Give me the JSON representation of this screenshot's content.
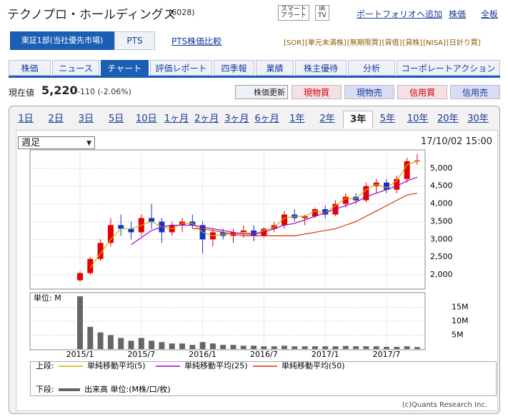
{
  "header": {
    "title": "テクノプロ・ホールディングス",
    "code": "(6028)",
    "alert": [
      "スマート",
      "アラート"
    ],
    "irtv": [
      "IR",
      "TV"
    ],
    "links": [
      "ポートフォリオへ追加",
      "株価",
      "全板"
    ]
  },
  "market": {
    "primary": "東証1部(当社優先市場)",
    "pts": "PTS",
    "compare": "PTS株価比較",
    "tags": [
      "[SOR]",
      "[単元未満株]",
      "[無期限買]",
      "[貸借]",
      "[貸株]",
      "[NISA]",
      "[日計り買]"
    ]
  },
  "nav": {
    "tabs": [
      "株価",
      "ニュース",
      "チャート",
      "評価レポート",
      "四季報",
      "業績",
      "株主優待",
      "分析",
      "コーポレートアクション"
    ]
  },
  "quote": {
    "label": "現在値",
    "price": "5,220",
    "change": "-110 (-2.06%)",
    "refresh": "株価更新",
    "buttons": [
      "現物買",
      "現物売",
      "信用買",
      "信用売"
    ]
  },
  "periods": [
    "1日",
    "2日",
    "3日",
    "5日",
    "10日",
    "1ヶ月",
    "2ヶ月",
    "3ヶ月",
    "6ヶ月",
    "1年",
    "2年",
    "3年",
    "5年",
    "10年",
    "20年",
    "30年"
  ],
  "chart_data": {
    "type": "candlestick",
    "interval": "週足",
    "timestamp": "17/10/02 15:00",
    "categories": [
      "2015/1",
      null,
      null,
      null,
      null,
      null,
      "2015/7",
      null,
      null,
      null,
      null,
      null,
      "2016/1",
      null,
      null,
      null,
      null,
      null,
      "2016/7",
      null,
      null,
      null,
      null,
      null,
      "2017/1",
      null,
      null,
      null,
      null,
      null,
      "2017/7",
      null,
      null,
      null
    ],
    "open": [
      1850,
      2050,
      2450,
      2900,
      3400,
      3300,
      3200,
      3600,
      3500,
      3200,
      3400,
      3500,
      3400,
      3000,
      3200,
      3100,
      3200,
      3250,
      3100,
      3300,
      3400,
      3700,
      3600,
      3650,
      3850,
      3700,
      4000,
      4200,
      4100,
      4500,
      4600,
      4400,
      4700,
      5200
    ],
    "high": [
      2100,
      2500,
      3000,
      3600,
      3700,
      3500,
      3700,
      4000,
      3600,
      3500,
      3600,
      3700,
      3500,
      3300,
      3300,
      3300,
      3400,
      3400,
      3350,
      3500,
      3800,
      3850,
      3700,
      3900,
      3950,
      4100,
      4300,
      4300,
      4600,
      4700,
      4700,
      4800,
      5300,
      5400
    ],
    "low": [
      1800,
      2000,
      2400,
      2800,
      3100,
      3000,
      3100,
      3300,
      2900,
      3100,
      3200,
      3300,
      2600,
      2800,
      3000,
      2900,
      3050,
      2950,
      3050,
      3200,
      3300,
      3500,
      3400,
      3600,
      3600,
      3650,
      3900,
      4000,
      4050,
      4300,
      4300,
      4300,
      4600,
      5100
    ],
    "close": [
      2050,
      2450,
      2900,
      3400,
      3300,
      3200,
      3600,
      3500,
      3200,
      3400,
      3500,
      3400,
      3000,
      3200,
      3100,
      3200,
      3250,
      3100,
      3300,
      3400,
      3700,
      3600,
      3650,
      3850,
      3700,
      4000,
      4200,
      4100,
      4500,
      4600,
      4400,
      4700,
      5200,
      5220
    ],
    "up_color": "#e60000",
    "down_color": "#1133cc",
    "ylim": [
      1600,
      5520
    ],
    "yticks": [
      {
        "value": 2000,
        "label": "2,000"
      },
      {
        "value": 2500,
        "label": "2,500"
      },
      {
        "value": 3000,
        "label": "3,000"
      },
      {
        "value": 3500,
        "label": "3,500"
      },
      {
        "value": 4000,
        "label": "4,000"
      },
      {
        "value": 4500,
        "label": "4,500"
      },
      {
        "value": 5000,
        "label": "5,000"
      }
    ],
    "upper_label": "上段:",
    "lower_label": "下段:",
    "series": [
      {
        "name": "単純移動平均(5)",
        "color": "#c8b400",
        "values": [
          null,
          2200,
          2600,
          3000,
          3300,
          3300,
          3400,
          3500,
          3350,
          3300,
          3450,
          3450,
          3200,
          3100,
          3150,
          3150,
          3200,
          3150,
          3250,
          3350,
          3600,
          3650,
          3650,
          3800,
          3750,
          3950,
          4150,
          4150,
          4400,
          4550,
          4450,
          4650,
          5100,
          5200
        ]
      },
      {
        "name": "単純移動平均(25)",
        "color": "#9900cc",
        "values": [
          null,
          null,
          null,
          null,
          null,
          2850,
          3050,
          3250,
          3350,
          3400,
          3400,
          3400,
          3350,
          3300,
          3250,
          3200,
          3150,
          3150,
          3200,
          3300,
          3400,
          3450,
          3550,
          3650,
          3750,
          3850,
          3950,
          4050,
          4200,
          4300,
          4400,
          4500,
          4650,
          4750
        ]
      },
      {
        "name": "単純移動平均(50)",
        "color": "#e03000",
        "values": [
          null,
          null,
          null,
          null,
          null,
          null,
          null,
          null,
          null,
          null,
          null,
          3300,
          3300,
          3250,
          3200,
          3150,
          3100,
          3100,
          3100,
          3100,
          3100,
          3100,
          3150,
          3200,
          3250,
          3300,
          3400,
          3500,
          3650,
          3800,
          3950,
          4100,
          4250,
          4300
        ]
      }
    ],
    "volume": {
      "unit": "単位: M",
      "name": "出来高 単位:(M株/口/枚)",
      "color": "#666666",
      "ylim": [
        0,
        20.3
      ],
      "yticks": [
        {
          "value": 5,
          "label": "5M"
        },
        {
          "value": 10,
          "label": "10M"
        },
        {
          "value": 15,
          "label": "15M"
        }
      ],
      "values": [
        19,
        8,
        6,
        5,
        4,
        3,
        4,
        3,
        2.5,
        2,
        2,
        1.5,
        2.5,
        2,
        1.5,
        1.5,
        1.2,
        1.2,
        1,
        1,
        1.2,
        1,
        1,
        1,
        1,
        1,
        1.1,
        1,
        1,
        1,
        0.8,
        0.8,
        1,
        0.7
      ]
    },
    "credit": "(c)Quants Research Inc."
  }
}
